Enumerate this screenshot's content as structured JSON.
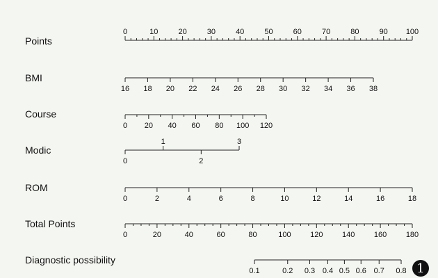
{
  "chart_data": {
    "type": "nomogram",
    "rows": [
      {
        "name": "Points",
        "label": "Points",
        "ticks": [
          0,
          10,
          20,
          30,
          40,
          50,
          60,
          70,
          80,
          90,
          100
        ],
        "minor_step": 2,
        "labels_above": true
      },
      {
        "name": "BMI",
        "label": "BMI",
        "ticks": [
          16,
          18,
          20,
          22,
          24,
          26,
          28,
          30,
          32,
          34,
          36,
          38
        ]
      },
      {
        "name": "Course",
        "label": "Course",
        "ticks": [
          0,
          20,
          40,
          60,
          80,
          100,
          120
        ],
        "minor_step": 10
      },
      {
        "name": "Modic",
        "label": "Modic",
        "ticks_above": [
          1,
          3
        ],
        "ticks_below": [
          0,
          2
        ]
      },
      {
        "name": "ROM",
        "label": "ROM",
        "ticks": [
          0,
          2,
          4,
          6,
          8,
          10,
          12,
          14,
          16,
          18
        ]
      },
      {
        "name": "Total Points",
        "label": "Total Points",
        "ticks": [
          0,
          20,
          40,
          60,
          80,
          100,
          120,
          140,
          160,
          180
        ],
        "minor_step": 5
      },
      {
        "name": "Diagnostic possibility",
        "label": "Diagnostic possibility",
        "ticks": [
          0.1,
          0.2,
          0.3,
          0.4,
          0.5,
          0.6,
          0.7,
          0.8
        ]
      }
    ]
  },
  "badge": "1"
}
